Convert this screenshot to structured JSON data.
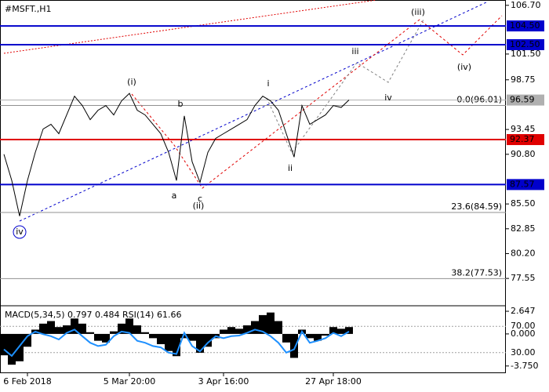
{
  "chart_data": [
    {
      "type": "line",
      "title": "#MSFT.,H1",
      "color": "#000000",
      "categories": [
        null,
        null,
        null,
        "6 Feb 2018",
        null,
        null,
        null,
        null,
        null,
        null,
        null,
        null,
        null,
        null,
        null,
        null,
        "5 Mar 20:00",
        null,
        null,
        null,
        null,
        null,
        null,
        null,
        null,
        null,
        null,
        null,
        "3 Apr 16:00",
        null,
        null,
        null,
        null,
        null,
        null,
        null,
        null,
        null,
        null,
        null,
        null,
        null,
        "27 Apr 18:00",
        null,
        null
      ],
      "values": [
        90.8,
        88,
        84.2,
        88,
        91,
        93.5,
        94,
        93,
        95,
        97,
        96,
        94.5,
        95.5,
        96,
        95,
        96.5,
        97.3,
        95.5,
        95,
        94,
        93,
        91,
        88,
        94.9,
        90,
        87.8,
        91,
        92.5,
        93,
        93.5,
        94,
        94.5,
        96,
        97,
        96.5,
        95.5,
        93,
        90.5,
        96,
        94,
        94.5,
        95,
        96,
        95.8,
        96.6
      ],
      "ylim": [
        74.8,
        107.1
      ],
      "yticks": [
        {
          "value": 106.7,
          "label": "106.70"
        },
        {
          "value": 101.5,
          "label": "101.50"
        },
        {
          "value": 98.75,
          "label": "98.75"
        },
        {
          "value": 93.45,
          "label": "93.45"
        },
        {
          "value": 90.8,
          "label": "90.80"
        },
        {
          "value": 85.5,
          "label": "85.50"
        },
        {
          "value": 82.85,
          "label": "82.85"
        },
        {
          "value": 80.2,
          "label": "80.20"
        },
        {
          "value": 77.55,
          "label": "77.55"
        }
      ],
      "levels": [
        {
          "value": 104.5,
          "label": "104.50",
          "color": "#0000cc"
        },
        {
          "value": 102.5,
          "label": "102.50",
          "color": "#0000cc"
        },
        {
          "value": 96.59,
          "label": "96.59",
          "color": "#b0b0b0"
        },
        {
          "value": 92.37,
          "label": "92.37",
          "color": "#e00000"
        },
        {
          "value": 87.57,
          "label": "87.57",
          "color": "#0000cc"
        }
      ],
      "fib_levels": [
        {
          "value": 96.01,
          "label": "0.0(96.01)"
        },
        {
          "value": 84.59,
          "label": "23.6(84.59)"
        },
        {
          "value": 77.53,
          "label": "38.2(77.53)"
        }
      ],
      "annotations": [
        {
          "text": "(i)",
          "color": "#e00000"
        },
        {
          "text": "(ii)",
          "color": "#e00000"
        },
        {
          "text": "(iii)",
          "color": "#e00000"
        },
        {
          "text": "(iv)",
          "color": "#e00000"
        },
        {
          "text": "i",
          "color": "#808080"
        },
        {
          "text": "ii",
          "color": "#808080"
        },
        {
          "text": "iii",
          "color": "#808080"
        },
        {
          "text": "iv",
          "color": "#808080"
        },
        {
          "text": "a",
          "color": "#808080"
        },
        {
          "text": "b",
          "color": "#808080"
        },
        {
          "text": "c",
          "color": "#808080"
        },
        {
          "text": "iv",
          "color": "#0000cc"
        }
      ]
    },
    {
      "type": "macd",
      "title": "MACD(5,34,5) 0.797 0.484 RSI(14) 61.66",
      "series": [
        {
          "color": "#000000",
          "values": [
            -2.5,
            -3.6,
            -3.2,
            -1.5,
            0.5,
            1.2,
            1.5,
            0.8,
            1.0,
            1.8,
            1.2,
            0.2,
            -0.8,
            -1.0,
            0.3,
            1.2,
            1.8,
            1.0,
            0.2,
            -0.5,
            -1.2,
            -2.0,
            -2.6,
            -0.5,
            -0.8,
            -2.2,
            -1.5,
            -0.5,
            0.5,
            0.8,
            0.6,
            1.0,
            1.5,
            2.2,
            2.5,
            1.5,
            -1.0,
            -2.8,
            0.5,
            -0.5,
            -0.8,
            -0.2,
            0.8,
            0.6,
            0.8
          ]
        },
        {
          "color": "#1e90ff",
          "axis": "y2",
          "values": [
            35,
            25,
            40,
            55,
            62,
            58,
            55,
            50,
            60,
            65,
            55,
            45,
            40,
            42,
            55,
            62,
            60,
            48,
            45,
            40,
            38,
            30,
            28,
            60,
            40,
            32,
            45,
            55,
            52,
            55,
            56,
            60,
            65,
            62,
            55,
            45,
            30,
            35,
            62,
            45,
            48,
            52,
            60,
            55,
            62
          ]
        }
      ],
      "ylim": [
        -4.5,
        3.2
      ],
      "yticks": [
        {
          "value": 2.647,
          "label": "2.647"
        },
        {
          "value": 0,
          "label": "0.000"
        },
        {
          "value": -3.75,
          "label": "-3.750"
        }
      ],
      "y2lim": [
        0,
        100
      ],
      "y2ticks": [
        {
          "value": 70,
          "label": "70.00"
        },
        {
          "value": 30,
          "label": "30.00"
        }
      ]
    }
  ]
}
